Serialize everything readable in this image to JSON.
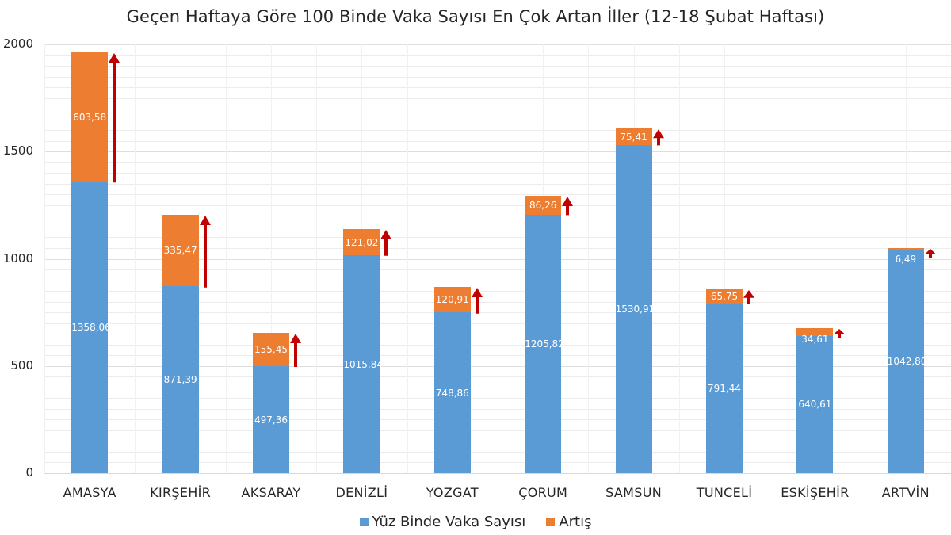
{
  "chart_data": {
    "type": "bar",
    "stacked": true,
    "title": "Geçen Haftaya Göre 100 Binde Vaka Sayısı En Çok Artan İller (12-18 Şubat Haftası)",
    "xlabel": "",
    "ylabel": "",
    "ylim": [
      0,
      2000
    ],
    "yticks": [
      "0",
      "500",
      "1000",
      "1500",
      "2000"
    ],
    "grid": true,
    "legend_position": "bottom",
    "categories": [
      "AMASYA",
      "KIRŞEHİR",
      "AKSARAY",
      "DENİZLİ",
      "YOZGAT",
      "ÇORUM",
      "SAMSUN",
      "TUNCELİ",
      "ESKİŞEHİR",
      "ARTVİN"
    ],
    "series": [
      {
        "name": "Yüz Binde Vaka Sayısı",
        "color": "#5B9BD5",
        "values": [
          1358.06,
          871.39,
          497.36,
          1015.84,
          748.86,
          1205.82,
          1530.91,
          791.44,
          640.61,
          1042.8
        ],
        "labels": [
          "1358,06",
          "871,39",
          "497,36",
          "1015,84",
          "748,86",
          "1205,82",
          "1530,91",
          "791,44",
          "640,61",
          "1042,80"
        ]
      },
      {
        "name": "Artış",
        "color": "#ED7D31",
        "values": [
          603.58,
          335.47,
          155.45,
          121.02,
          120.91,
          86.26,
          75.41,
          65.75,
          34.61,
          6.49
        ],
        "labels": [
          "603,58",
          "335,47",
          "155,45",
          "121,02",
          "120,91",
          "86,26",
          "75,41",
          "65,75",
          "34,61",
          "6,49"
        ]
      }
    ],
    "annotations": {
      "arrows": "dark red upward arrow beside each bar spanning the Artış segment",
      "arrow_color": "#C00000"
    }
  },
  "legend": {
    "items": [
      {
        "label": "Yüz Binde Vaka Sayısı",
        "color": "#5B9BD5"
      },
      {
        "label": "Artış",
        "color": "#ED7D31"
      }
    ]
  }
}
